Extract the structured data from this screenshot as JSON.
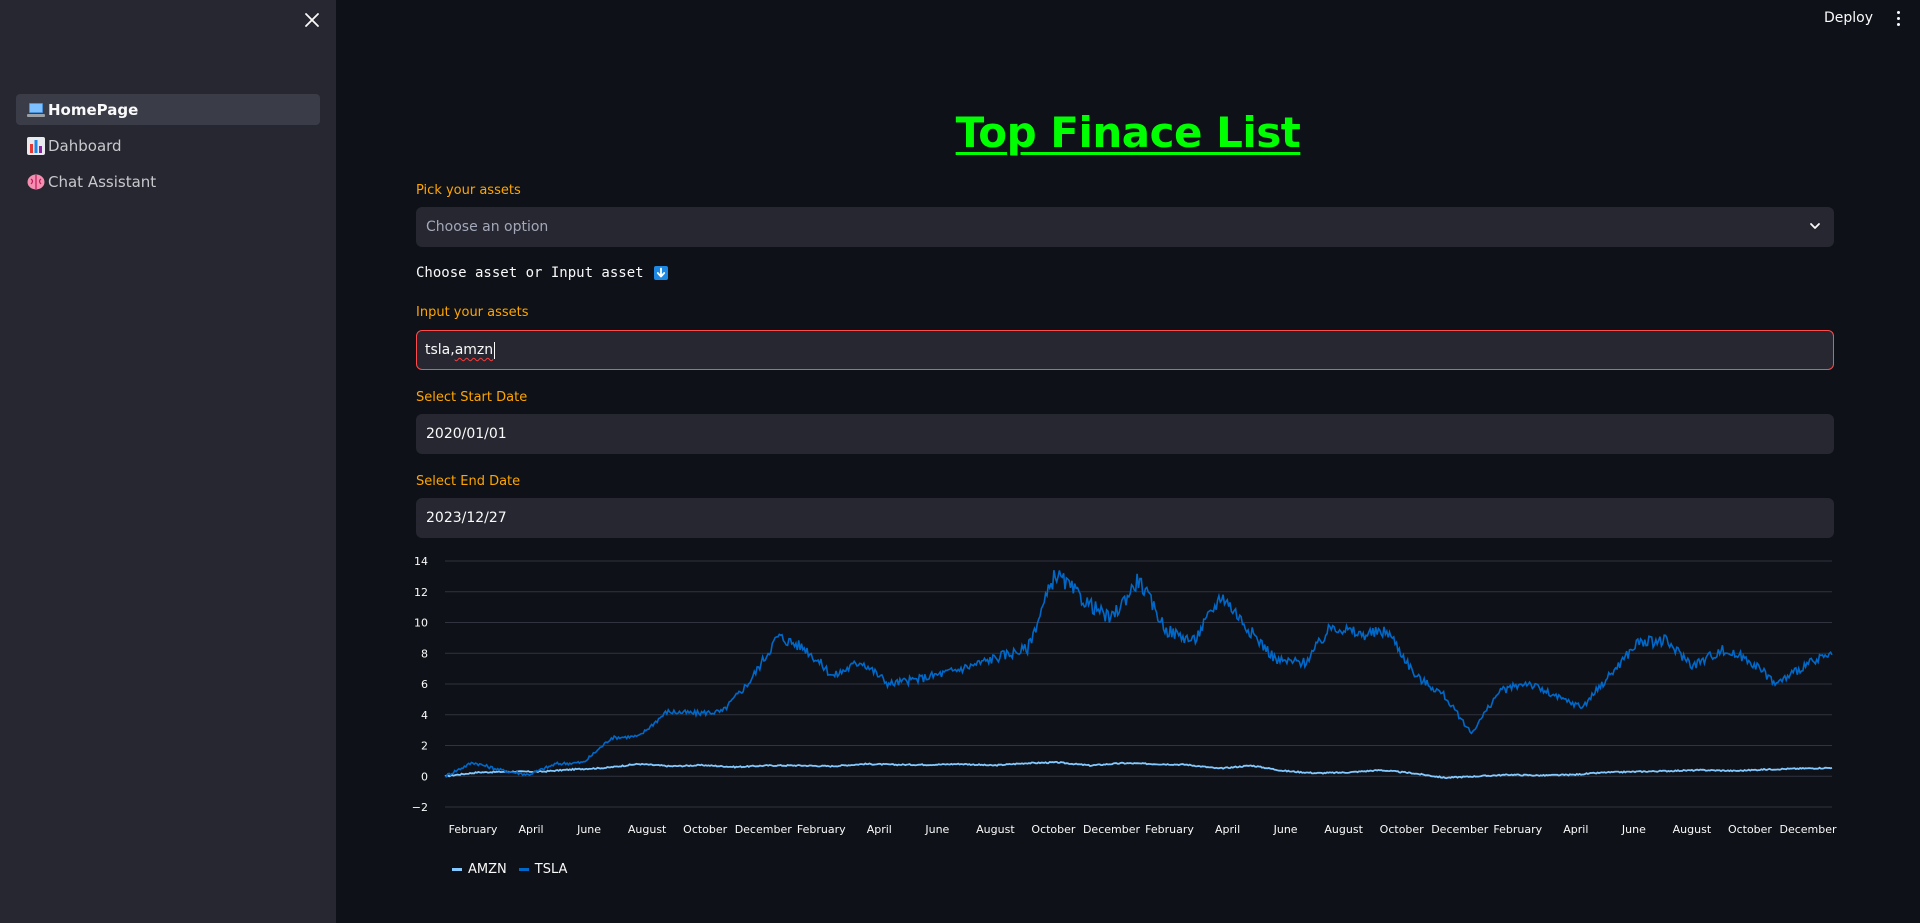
{
  "sidebar": {
    "items": [
      {
        "label": "HomePage",
        "icon": "laptop-icon",
        "active": true
      },
      {
        "label": "Dahboard",
        "icon": "bar-chart-icon",
        "active": false
      },
      {
        "label": "Chat Assistant",
        "icon": "brain-icon",
        "active": false
      }
    ]
  },
  "header": {
    "deploy_label": "Deploy"
  },
  "main": {
    "title": "Top Finace List",
    "pick_label": "Pick your assets",
    "pick_placeholder": "Choose an option",
    "hint": "Choose asset or Input asset",
    "input_label": "Input your assets",
    "input_value_a": "tsla,",
    "input_value_b": "amzn",
    "start_label": "Select Start Date",
    "start_value": "2020/01/01",
    "end_label": "Select End Date",
    "end_value": "2023/12/27"
  },
  "colors": {
    "accent": "#ffa500",
    "title": "#00ff00",
    "error_border": "#ff4b4b",
    "amzn": "#83c9ff",
    "tsla": "#0068c9"
  },
  "chart_data": {
    "type": "line",
    "x_ticks": [
      "February",
      "April",
      "June",
      "August",
      "October",
      "December",
      "February",
      "April",
      "June",
      "August",
      "October",
      "December",
      "February",
      "April",
      "June",
      "August",
      "October",
      "December",
      "February",
      "April",
      "June",
      "August",
      "October",
      "December"
    ],
    "y_ticks": [
      "14",
      "12",
      "10",
      "8",
      "6",
      "4",
      "2",
      "0",
      "−2"
    ],
    "ylim": [
      -2,
      14
    ],
    "grid": true,
    "legend_position": "bottom-left",
    "series": [
      {
        "name": "AMZN",
        "color": "#83c9ff",
        "values": [
          0,
          0.25,
          0.3,
          0.3,
          0.45,
          0.55,
          0.8,
          0.65,
          0.72,
          0.6,
          0.7,
          0.7,
          0.65,
          0.8,
          0.75,
          0.75,
          0.8,
          0.7,
          0.85,
          0.9,
          0.7,
          0.85,
          0.8,
          0.75,
          0.5,
          0.7,
          0.35,
          0.2,
          0.25,
          0.4,
          0.2,
          -0.1,
          0,
          0.1,
          0.05,
          0.1,
          0.25,
          0.3,
          0.35,
          0.4,
          0.35,
          0.45,
          0.5,
          0.55
        ]
      },
      {
        "name": "TSLA",
        "color": "#0068c9",
        "values": [
          0,
          0.9,
          0.4,
          0.1,
          0.8,
          0.9,
          2.5,
          2.6,
          4.2,
          4.1,
          4.2,
          6.2,
          9.1,
          8.3,
          6.5,
          7.5,
          6,
          6.3,
          6.7,
          7.2,
          7.8,
          8.3,
          13.2,
          11.5,
          10.2,
          12.8,
          9.5,
          8.8,
          11.8,
          9.5,
          7.5,
          7.4,
          9.8,
          9.2,
          9.4,
          6.5,
          5.3,
          2.8,
          5.5,
          6.1,
          5.2,
          4.5,
          6.6,
          8.7,
          8.8,
          7.2,
          8.2,
          7.6,
          6,
          7.2,
          7.9
        ]
      }
    ]
  }
}
